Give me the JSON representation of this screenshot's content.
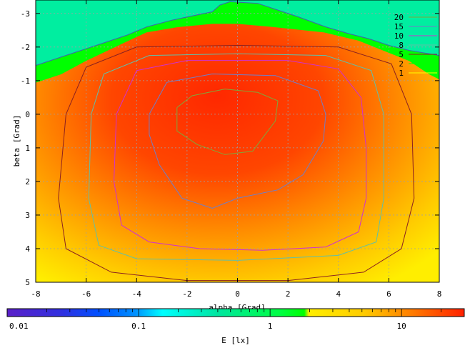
{
  "chart_data": {
    "type": "heatmap",
    "title": "",
    "xlabel": "alpha [Grad]",
    "ylabel": "beta [Grad]",
    "xlim": [
      -8,
      8
    ],
    "ylim": [
      -3.4,
      5
    ],
    "y_axis_direction": "downward increasing",
    "xticks": [
      "-8",
      "-6",
      "-4",
      "-2",
      "0",
      "2",
      "4",
      "6",
      "8"
    ],
    "yticks": [
      "-3",
      "-2",
      "-1",
      "0",
      "1",
      "2",
      "3",
      "4",
      "5"
    ],
    "grid": true,
    "legend_position": "top-right",
    "contours": [
      {
        "name": "20",
        "color": "#7fa83a",
        "points": [
          [
            -2.4,
            -0.2
          ],
          [
            -1.8,
            -0.55
          ],
          [
            -0.5,
            -0.75
          ],
          [
            0.8,
            -0.65
          ],
          [
            1.6,
            -0.4
          ],
          [
            1.5,
            0.2
          ],
          [
            0.6,
            1.1
          ],
          [
            -0.5,
            1.2
          ],
          [
            -1.6,
            0.9
          ],
          [
            -2.4,
            0.5
          ],
          [
            -2.4,
            -0.2
          ]
        ]
      },
      {
        "name": "15",
        "color": "#6f7fc8",
        "points": [
          [
            -3.5,
            0
          ],
          [
            -2.8,
            -0.95
          ],
          [
            -1,
            -1.2
          ],
          [
            1.5,
            -1.15
          ],
          [
            3.2,
            -0.7
          ],
          [
            3.5,
            0
          ],
          [
            3.4,
            0.8
          ],
          [
            2.6,
            1.8
          ],
          [
            1.6,
            2.25
          ],
          [
            0,
            2.5
          ],
          [
            -1,
            2.8
          ],
          [
            -2.2,
            2.5
          ],
          [
            -3.1,
            1.5
          ],
          [
            -3.5,
            0.6
          ],
          [
            -3.5,
            0
          ]
        ]
      },
      {
        "name": "10",
        "color": "#d030d0",
        "points": [
          [
            -4.8,
            0
          ],
          [
            -4,
            -1.3
          ],
          [
            -2,
            -1.6
          ],
          [
            2,
            -1.6
          ],
          [
            4,
            -1.35
          ],
          [
            4.9,
            -0.5
          ],
          [
            5.1,
            1
          ],
          [
            5.1,
            2.5
          ],
          [
            4.8,
            3.5
          ],
          [
            3.5,
            3.95
          ],
          [
            1,
            4.05
          ],
          [
            -1.5,
            4
          ],
          [
            -3.5,
            3.8
          ],
          [
            -4.6,
            3.3
          ],
          [
            -4.9,
            2
          ],
          [
            -4.8,
            0
          ]
        ]
      },
      {
        "name": "8",
        "color": "#60c0a8",
        "points": [
          [
            -5.8,
            0
          ],
          [
            -5.3,
            -1.2
          ],
          [
            -3.5,
            -1.75
          ],
          [
            0,
            -1.8
          ],
          [
            3.5,
            -1.75
          ],
          [
            5.3,
            -1.3
          ],
          [
            5.8,
            0
          ],
          [
            5.8,
            2.5
          ],
          [
            5.5,
            3.8
          ],
          [
            4,
            4.2
          ],
          [
            0,
            4.35
          ],
          [
            -4,
            4.3
          ],
          [
            -5.5,
            3.9
          ],
          [
            -5.9,
            2.5
          ],
          [
            -5.8,
            0
          ]
        ]
      },
      {
        "name": "5",
        "color": "#8b2020",
        "points": [
          [
            -6.8,
            0
          ],
          [
            -6,
            -1.4
          ],
          [
            -4,
            -2
          ],
          [
            0,
            -2.05
          ],
          [
            4,
            -2
          ],
          [
            6.1,
            -1.5
          ],
          [
            6.9,
            0
          ],
          [
            7,
            2.5
          ],
          [
            6.5,
            4
          ],
          [
            5,
            4.7
          ],
          [
            2,
            4.95
          ],
          [
            -2,
            4.95
          ],
          [
            -5,
            4.7
          ],
          [
            -6.8,
            4
          ],
          [
            -7.1,
            2.5
          ],
          [
            -6.8,
            0
          ]
        ]
      },
      {
        "name": "2",
        "color": "#00ff00",
        "points": [
          [
            -8,
            -0.95
          ],
          [
            -7,
            -1.2
          ],
          [
            -6,
            -1.6
          ],
          [
            -4.6,
            -2.1
          ],
          [
            -3.6,
            -2.45
          ],
          [
            -2.4,
            -2.6
          ],
          [
            -1,
            -2.7
          ],
          [
            0,
            -2.7
          ],
          [
            1.5,
            -2.6
          ],
          [
            3.4,
            -2.45
          ],
          [
            4.8,
            -2.2
          ],
          [
            5.8,
            -1.9
          ],
          [
            6.8,
            -1.6
          ],
          [
            7.6,
            -1.2
          ],
          [
            8,
            -1.05
          ]
        ]
      },
      {
        "name": "1",
        "color": "#ffff00",
        "points": []
      },
      {
        "name": "",
        "color": "#4060b0",
        "points": [
          [
            -8,
            -1.45
          ],
          [
            -7,
            -1.7
          ],
          [
            -5.6,
            -2.05
          ],
          [
            -4.4,
            -2.35
          ],
          [
            -3.6,
            -2.6
          ],
          [
            -2.6,
            -2.8
          ],
          [
            -1,
            -3.05
          ],
          [
            -0.7,
            -3.25
          ],
          [
            -0.3,
            -3.35
          ],
          [
            0.8,
            -3.3
          ],
          [
            1.6,
            -3.1
          ],
          [
            2.4,
            -2.9
          ],
          [
            3.5,
            -2.6
          ],
          [
            4.4,
            -2.4
          ],
          [
            5.2,
            -2.25
          ],
          [
            6,
            -2.05
          ],
          [
            6.8,
            -1.9
          ],
          [
            8,
            -1.75
          ]
        ]
      }
    ],
    "colorbar": {
      "label": "E [lx]",
      "scale": "log",
      "range": [
        0.01,
        30
      ],
      "tick_labels": [
        "0.01",
        "0.1",
        "1",
        "10"
      ],
      "tick_values": [
        0.01,
        0.1,
        1,
        10
      ],
      "color_bands": [
        {
          "from": 0.01,
          "to": 0.03,
          "color": "#5a20c8"
        },
        {
          "from": 0.03,
          "to": 0.1,
          "color": "#1450ff"
        },
        {
          "from": 0.1,
          "to": 0.2,
          "color": "#00ffff"
        },
        {
          "from": 0.2,
          "to": 0.6,
          "color": "#00e6a0"
        },
        {
          "from": 0.6,
          "to": 2.5,
          "color": "#00ff00"
        },
        {
          "from": 2.5,
          "to": 30,
          "color": "#ffee00"
        }
      ]
    }
  }
}
